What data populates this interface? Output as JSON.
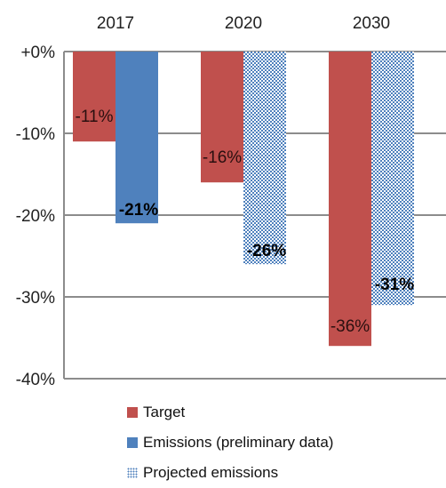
{
  "chart_data": {
    "type": "bar",
    "categories": [
      "2017",
      "2020",
      "2030"
    ],
    "series": [
      {
        "name": "Target",
        "values": [
          -11,
          -16,
          -36
        ],
        "labels": [
          "-11%",
          "-16%",
          "-36%"
        ],
        "color": "#c0504d",
        "pattern": "solid"
      },
      {
        "name": "Emissions (preliminary data)",
        "values": [
          -21,
          null,
          null
        ],
        "labels": [
          "-21%",
          null,
          null
        ],
        "color": "#4f81bd",
        "pattern": "solid"
      },
      {
        "name": "Projected emissions",
        "values": [
          null,
          -26,
          -31
        ],
        "labels": [
          null,
          "-26%",
          "-31%"
        ],
        "color": "#4f81bd",
        "pattern": "dotted"
      }
    ],
    "y_ticks": [
      0,
      -10,
      -20,
      -30,
      -40
    ],
    "y_tick_labels": [
      "+0%",
      "-10%",
      "-20%",
      "-30%",
      "-40%"
    ],
    "ylim": [
      -40,
      0
    ],
    "grid": true,
    "legend_position": "bottom",
    "category_axis_position": "top"
  }
}
